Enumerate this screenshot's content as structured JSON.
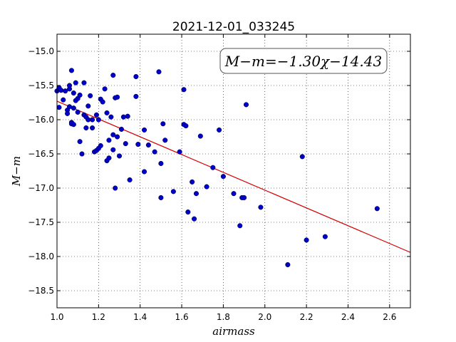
{
  "chart_data": {
    "type": "scatter",
    "title": "2021-12-01_033245",
    "xlabel": "airmass",
    "ylabel": "M−m",
    "xlim": [
      1.0,
      2.7
    ],
    "ylim": [
      -18.75,
      -14.75
    ],
    "y_inverted": true,
    "grid": true,
    "x_ticks": [
      1.0,
      1.2,
      1.4,
      1.6,
      1.8,
      2.0,
      2.2,
      2.4,
      2.6
    ],
    "x_tick_labels": [
      "1.0",
      "1.2",
      "1.4",
      "1.6",
      "1.8",
      "2.0",
      "2.2",
      "2.4",
      "2.6"
    ],
    "y_ticks": [
      -15.0,
      -15.5,
      -16.0,
      -16.5,
      -17.0,
      -17.5,
      -18.0,
      -18.5
    ],
    "y_tick_labels": [
      "−15.0",
      "−15.5",
      "−16.0",
      "−16.5",
      "−17.0",
      "−17.5",
      "−18.0",
      "−18.5"
    ],
    "annotation": "M−m=−1.30χ−14.43",
    "annotation_position": "top-right",
    "fit_line": {
      "slope": -1.3,
      "intercept": -14.43,
      "color": "#d40000"
    },
    "marker_color": "#0000c8",
    "points": [
      [
        1.0,
        -15.58
      ],
      [
        1.01,
        -15.53
      ],
      [
        1.01,
        -15.82
      ],
      [
        1.02,
        -15.57
      ],
      [
        1.03,
        -15.71
      ],
      [
        1.04,
        -15.58
      ],
      [
        1.05,
        -15.86
      ],
      [
        1.05,
        -15.91
      ],
      [
        1.06,
        -15.55
      ],
      [
        1.06,
        -15.5
      ],
      [
        1.06,
        -15.81
      ],
      [
        1.07,
        -15.28
      ],
      [
        1.07,
        -16.04
      ],
      [
        1.07,
        -16.06
      ],
      [
        1.08,
        -15.61
      ],
      [
        1.08,
        -16.07
      ],
      [
        1.08,
        -15.83
      ],
      [
        1.09,
        -15.72
      ],
      [
        1.09,
        -15.46
      ],
      [
        1.1,
        -15.89
      ],
      [
        1.1,
        -15.69
      ],
      [
        1.11,
        -15.64
      ],
      [
        1.11,
        -16.32
      ],
      [
        1.12,
        -16.5
      ],
      [
        1.13,
        -15.46
      ],
      [
        1.13,
        -15.93
      ],
      [
        1.14,
        -15.96
      ],
      [
        1.14,
        -16.12
      ],
      [
        1.15,
        -15.8
      ],
      [
        1.15,
        -16.0
      ],
      [
        1.16,
        -15.65
      ],
      [
        1.17,
        -16.0
      ],
      [
        1.17,
        -16.12
      ],
      [
        1.18,
        -16.47
      ],
      [
        1.19,
        -15.93
      ],
      [
        1.19,
        -16.45
      ],
      [
        1.2,
        -16.0
      ],
      [
        1.2,
        -16.42
      ],
      [
        1.21,
        -16.38
      ],
      [
        1.21,
        -15.7
      ],
      [
        1.22,
        -15.74
      ],
      [
        1.23,
        -15.55
      ],
      [
        1.24,
        -16.6
      ],
      [
        1.24,
        -15.9
      ],
      [
        1.25,
        -16.56
      ],
      [
        1.25,
        -16.3
      ],
      [
        1.26,
        -15.96
      ],
      [
        1.27,
        -16.44
      ],
      [
        1.27,
        -16.22
      ],
      [
        1.27,
        -15.35
      ],
      [
        1.28,
        -15.68
      ],
      [
        1.28,
        -17.0
      ],
      [
        1.29,
        -15.67
      ],
      [
        1.29,
        -16.25
      ],
      [
        1.3,
        -16.53
      ],
      [
        1.31,
        -16.14
      ],
      [
        1.32,
        -15.96
      ],
      [
        1.33,
        -16.35
      ],
      [
        1.34,
        -15.95
      ],
      [
        1.35,
        -16.88
      ],
      [
        1.38,
        -15.37
      ],
      [
        1.38,
        -15.66
      ],
      [
        1.39,
        -16.36
      ],
      [
        1.42,
        -16.15
      ],
      [
        1.42,
        -16.76
      ],
      [
        1.44,
        -16.37
      ],
      [
        1.47,
        -16.47
      ],
      [
        1.49,
        -15.3
      ],
      [
        1.5,
        -16.64
      ],
      [
        1.5,
        -17.14
      ],
      [
        1.51,
        -16.06
      ],
      [
        1.52,
        -16.3
      ],
      [
        1.56,
        -17.05
      ],
      [
        1.59,
        -16.47
      ],
      [
        1.61,
        -16.07
      ],
      [
        1.61,
        -15.56
      ],
      [
        1.62,
        -16.09
      ],
      [
        1.63,
        -17.35
      ],
      [
        1.65,
        -16.91
      ],
      [
        1.66,
        -17.45
      ],
      [
        1.67,
        -17.08
      ],
      [
        1.69,
        -16.24
      ],
      [
        1.72,
        -16.98
      ],
      [
        1.75,
        -16.7
      ],
      [
        1.78,
        -16.15
      ],
      [
        1.8,
        -16.83
      ],
      [
        1.85,
        -17.08
      ],
      [
        1.88,
        -17.55
      ],
      [
        1.89,
        -17.14
      ],
      [
        1.9,
        -17.14
      ],
      [
        1.91,
        -15.78
      ],
      [
        1.98,
        -17.28
      ],
      [
        2.11,
        -18.12
      ],
      [
        2.18,
        -16.54
      ],
      [
        2.2,
        -17.76
      ],
      [
        2.29,
        -17.71
      ],
      [
        2.54,
        -17.3
      ]
    ]
  }
}
